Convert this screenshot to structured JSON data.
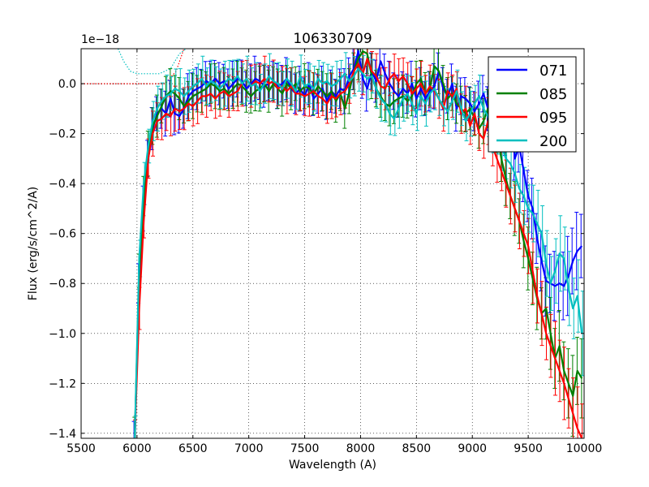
{
  "chart_data": {
    "type": "line",
    "title": "106330709",
    "xlabel": "Wavelength (A)",
    "ylabel": "Flux (erg/s/cm^2/A)",
    "y_scale_label": "1e−18",
    "xlim": [
      5500,
      10000
    ],
    "ylim": [
      -1.42,
      0.14
    ],
    "x_ticks": [
      5500,
      6000,
      6500,
      7000,
      7500,
      8000,
      8500,
      9000,
      9500,
      10000
    ],
    "x_tick_labels": [
      "5500",
      "6000",
      "6500",
      "7000",
      "7500",
      "8000",
      "8500",
      "9000",
      "9500",
      "10000"
    ],
    "y_ticks": [
      0.0,
      -0.2,
      -0.4,
      -0.6,
      -0.8,
      -1.0,
      -1.2,
      -1.4
    ],
    "y_tick_labels": [
      "0.0",
      "−0.2",
      "−0.4",
      "−0.6",
      "−0.8",
      "−1.0",
      "−1.2",
      "−1.4"
    ],
    "grid": true,
    "legend_position": "top-right",
    "x": [
      5980,
      6020,
      6060,
      6100,
      6140,
      6180,
      6220,
      6260,
      6300,
      6340,
      6380,
      6420,
      6460,
      6500,
      6540,
      6580,
      6620,
      6660,
      6700,
      6740,
      6780,
      6820,
      6860,
      6900,
      6940,
      6980,
      7020,
      7060,
      7100,
      7140,
      7180,
      7220,
      7260,
      7300,
      7340,
      7380,
      7420,
      7460,
      7500,
      7540,
      7580,
      7620,
      7660,
      7700,
      7740,
      7780,
      7820,
      7860,
      7900,
      7940,
      7980,
      8020,
      8060,
      8100,
      8140,
      8180,
      8220,
      8260,
      8300,
      8340,
      8380,
      8420,
      8460,
      8500,
      8540,
      8580,
      8620,
      8660,
      8700,
      8740,
      8780,
      8820,
      8860,
      8900,
      8940,
      8980,
      9020,
      9060,
      9100,
      9140,
      9180,
      9220,
      9260,
      9300,
      9340,
      9380,
      9420,
      9460,
      9500,
      9540,
      9580,
      9620,
      9660,
      9700,
      9740,
      9780,
      9820,
      9860,
      9900,
      9940,
      9980
    ],
    "series": [
      {
        "name": "071",
        "color": "#0000ff",
        "values": [
          -1.42,
          -0.8,
          -0.5,
          -0.3,
          -0.18,
          -0.12,
          -0.1,
          -0.12,
          -0.06,
          -0.12,
          -0.13,
          -0.1,
          -0.05,
          -0.03,
          -0.02,
          -0.01,
          0.01,
          0.0,
          0.02,
          0.0,
          0.01,
          -0.02,
          0.0,
          0.02,
          0.01,
          -0.02,
          0.0,
          0.02,
          0.01,
          -0.01,
          0.0,
          0.01,
          -0.01,
          0.0,
          0.02,
          -0.02,
          -0.04,
          -0.02,
          -0.05,
          0.0,
          -0.06,
          -0.04,
          -0.02,
          -0.07,
          -0.03,
          -0.05,
          -0.02,
          -0.03,
          0.03,
          0.06,
          0.13,
          0.02,
          -0.02,
          0.05,
          0.01,
          0.09,
          0.04,
          0.0,
          -0.03,
          -0.05,
          -0.02,
          -0.04,
          0.0,
          -0.06,
          -0.02,
          -0.06,
          -0.03,
          -0.01,
          0.05,
          -0.02,
          -0.05,
          0.0,
          -0.1,
          -0.05,
          -0.06,
          -0.08,
          -0.11,
          -0.08,
          -0.04,
          -0.1,
          -0.12,
          -0.08,
          -0.15,
          -0.2,
          -0.1,
          -0.3,
          -0.25,
          -0.35,
          -0.45,
          -0.5,
          -0.62,
          -0.71,
          -0.79,
          -0.8,
          -0.81,
          -0.8,
          -0.81,
          -0.77,
          -0.71,
          -0.67,
          -0.65
        ]
      },
      {
        "name": "085",
        "color": "#008000",
        "values": [
          -1.42,
          -0.75,
          -0.45,
          -0.28,
          -0.17,
          -0.13,
          -0.09,
          -0.05,
          -0.03,
          -0.04,
          -0.06,
          -0.09,
          -0.07,
          -0.05,
          -0.04,
          -0.03,
          -0.02,
          0.0,
          -0.01,
          -0.03,
          -0.02,
          -0.04,
          -0.02,
          0.0,
          -0.01,
          -0.03,
          -0.05,
          -0.03,
          -0.02,
          0.0,
          -0.03,
          0.0,
          -0.02,
          -0.04,
          0.0,
          -0.02,
          0.0,
          -0.03,
          -0.01,
          -0.02,
          -0.04,
          -0.01,
          -0.03,
          -0.05,
          -0.03,
          -0.07,
          -0.04,
          -0.1,
          -0.03,
          0.05,
          0.1,
          0.13,
          0.12,
          0.03,
          -0.02,
          -0.05,
          -0.08,
          -0.09,
          -0.07,
          -0.06,
          -0.05,
          -0.07,
          -0.05,
          0.0,
          0.02,
          -0.04,
          -0.02,
          0.07,
          0.05,
          0.0,
          -0.06,
          -0.04,
          -0.08,
          -0.1,
          -0.12,
          -0.1,
          -0.14,
          -0.18,
          -0.15,
          -0.1,
          -0.16,
          -0.2,
          -0.3,
          -0.38,
          -0.45,
          -0.5,
          -0.55,
          -0.63,
          -0.7,
          -0.78,
          -0.86,
          -0.92,
          -0.9,
          -1.0,
          -1.1,
          -1.05,
          -1.15,
          -1.2,
          -1.25,
          -1.15,
          -1.18
        ]
      },
      {
        "name": "095",
        "color": "#ff0000",
        "values": [
          -1.42,
          -0.9,
          -0.55,
          -0.3,
          -0.2,
          -0.15,
          -0.14,
          -0.12,
          -0.13,
          -0.1,
          -0.11,
          -0.1,
          -0.08,
          -0.09,
          -0.07,
          -0.05,
          -0.05,
          -0.04,
          -0.06,
          -0.04,
          -0.03,
          -0.05,
          -0.04,
          -0.03,
          0.0,
          0.02,
          -0.01,
          0.01,
          0.0,
          0.02,
          0.0,
          0.01,
          -0.02,
          -0.01,
          -0.03,
          -0.01,
          -0.04,
          -0.04,
          -0.05,
          -0.04,
          -0.03,
          -0.05,
          -0.06,
          -0.08,
          -0.05,
          -0.06,
          -0.04,
          -0.03,
          0.0,
          0.05,
          0.08,
          0.04,
          0.1,
          0.05,
          0.03,
          -0.01,
          -0.02,
          0.02,
          0.04,
          0.01,
          0.03,
          0.0,
          -0.04,
          -0.02,
          0.0,
          -0.04,
          -0.01,
          -0.03,
          -0.06,
          -0.1,
          -0.03,
          -0.05,
          -0.02,
          -0.12,
          -0.1,
          -0.17,
          -0.12,
          -0.2,
          -0.22,
          -0.15,
          -0.25,
          -0.3,
          -0.35,
          -0.4,
          -0.45,
          -0.5,
          -0.55,
          -0.6,
          -0.65,
          -0.75,
          -0.85,
          -0.92,
          -1.0,
          -1.05,
          -1.1,
          -1.15,
          -1.2,
          -1.26,
          -1.32,
          -1.38,
          -1.42
        ]
      },
      {
        "name": "200",
        "color": "#00bfbf",
        "values": [
          -1.42,
          -0.7,
          -0.4,
          -0.25,
          -0.15,
          -0.1,
          -0.07,
          -0.05,
          -0.04,
          -0.02,
          -0.03,
          -0.05,
          -0.03,
          -0.01,
          0.0,
          0.02,
          -0.01,
          0.01,
          0.0,
          -0.02,
          0.0,
          0.02,
          0.01,
          0.03,
          0.0,
          0.02,
          -0.01,
          0.0,
          -0.03,
          0.0,
          0.03,
          0.01,
          0.0,
          -0.02,
          0.02,
          0.0,
          -0.03,
          0.03,
          -0.01,
          0.0,
          -0.02,
          0.02,
          0.0,
          0.01,
          -0.01,
          0.0,
          0.02,
          0.04,
          0.01,
          0.03,
          0.06,
          0.04,
          0.02,
          0.03,
          -0.02,
          -0.06,
          -0.08,
          -0.12,
          -0.14,
          -0.1,
          -0.06,
          -0.04,
          -0.08,
          -0.12,
          -0.05,
          -0.08,
          -0.04,
          -0.02,
          -0.06,
          -0.09,
          -0.11,
          -0.07,
          -0.03,
          -0.1,
          -0.15,
          -0.12,
          -0.08,
          -0.05,
          -0.1,
          -0.13,
          -0.18,
          -0.2,
          -0.25,
          -0.3,
          -0.32,
          -0.36,
          -0.42,
          -0.45,
          -0.5,
          -0.52,
          -0.56,
          -0.6,
          -0.72,
          -0.8,
          -0.75,
          -0.68,
          -0.7,
          -0.82,
          -0.9,
          -0.85,
          -1.0
        ]
      }
    ],
    "error_bar_size": 0.09,
    "reference_lines": [
      {
        "name": "071-dotted",
        "color": "#0000ff",
        "x": [
          5500,
          6250
        ],
        "y": [
          0.0,
          0.0
        ]
      },
      {
        "name": "085-dotted",
        "color": "#008000",
        "x": [
          5500,
          6250
        ],
        "y": [
          0.0,
          0.0
        ]
      },
      {
        "name": "095-dotted",
        "color": "#ff0000",
        "x": [
          5500,
          6250,
          6350,
          6420
        ],
        "y": [
          0.0,
          0.0,
          0.05,
          0.14
        ]
      },
      {
        "name": "200-dotted",
        "color": "#00bfbf",
        "x": [
          5830,
          5880,
          5940,
          6000,
          6200,
          6300,
          6380,
          6440
        ],
        "y": [
          0.14,
          0.09,
          0.05,
          0.04,
          0.04,
          0.06,
          0.12,
          0.14
        ]
      }
    ]
  }
}
